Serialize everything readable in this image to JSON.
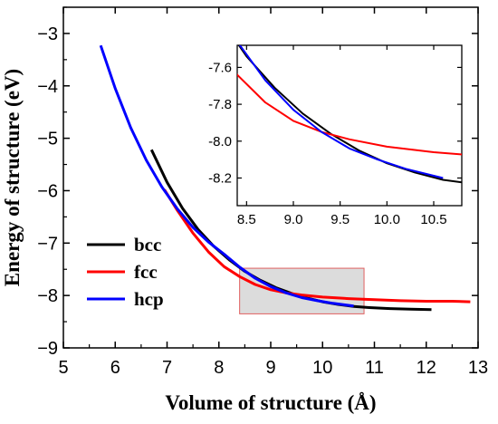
{
  "chart_data": {
    "type": "line",
    "xlabel": "Volume of structure (Å)",
    "ylabel": "Energy of structure (eV)",
    "xlim": [
      5,
      13
    ],
    "ylim": [
      -9,
      -2.5
    ],
    "x_ticks": [
      "5",
      "6",
      "7",
      "8",
      "9",
      "10",
      "11",
      "12",
      "13"
    ],
    "y_ticks": [
      "−9",
      "−8",
      "−7",
      "−6",
      "−5",
      "−4",
      "−3"
    ],
    "legend_position": "left",
    "series": [
      {
        "name": "bcc",
        "color": "#000000",
        "points": [
          [
            6.7,
            -5.22
          ],
          [
            7.0,
            -5.84
          ],
          [
            7.3,
            -6.34
          ],
          [
            7.6,
            -6.74
          ],
          [
            7.9,
            -7.06
          ],
          [
            8.2,
            -7.32
          ],
          [
            8.5,
            -7.54
          ],
          [
            8.8,
            -7.71
          ],
          [
            9.1,
            -7.85
          ],
          [
            9.4,
            -7.96
          ],
          [
            9.7,
            -8.05
          ],
          [
            10.0,
            -8.12
          ],
          [
            10.3,
            -8.17
          ],
          [
            10.6,
            -8.21
          ],
          [
            10.9,
            -8.23
          ],
          [
            11.3,
            -8.25
          ],
          [
            11.7,
            -8.26
          ],
          [
            12.1,
            -8.27
          ]
        ]
      },
      {
        "name": "fcc",
        "color": "#ff0000",
        "points": [
          [
            6.95,
            -5.98
          ],
          [
            7.2,
            -6.38
          ],
          [
            7.5,
            -6.81
          ],
          [
            7.8,
            -7.17
          ],
          [
            8.1,
            -7.45
          ],
          [
            8.4,
            -7.64
          ],
          [
            8.7,
            -7.79
          ],
          [
            9.0,
            -7.89
          ],
          [
            9.3,
            -7.95
          ],
          [
            9.6,
            -7.99
          ],
          [
            10.0,
            -8.03
          ],
          [
            10.5,
            -8.06
          ],
          [
            11.0,
            -8.08
          ],
          [
            11.5,
            -8.1
          ],
          [
            12.0,
            -8.11
          ],
          [
            12.5,
            -8.11
          ],
          [
            12.85,
            -8.12
          ]
        ]
      },
      {
        "name": "hcp",
        "color": "#0000ff",
        "points": [
          [
            5.72,
            -3.23
          ],
          [
            6.0,
            -4.05
          ],
          [
            6.3,
            -4.8
          ],
          [
            6.6,
            -5.42
          ],
          [
            6.9,
            -5.93
          ],
          [
            7.2,
            -6.35
          ],
          [
            7.5,
            -6.7
          ],
          [
            7.8,
            -6.98
          ],
          [
            8.1,
            -7.21
          ],
          [
            8.4,
            -7.46
          ],
          [
            8.7,
            -7.67
          ],
          [
            9.0,
            -7.83
          ],
          [
            9.3,
            -7.95
          ],
          [
            9.6,
            -8.04
          ],
          [
            9.9,
            -8.1
          ],
          [
            10.2,
            -8.15
          ],
          [
            10.6,
            -8.2
          ]
        ]
      }
    ],
    "highlight_region": {
      "x": [
        8.4,
        10.8
      ],
      "y": [
        -8.35,
        -7.48
      ],
      "color": "#e06060"
    },
    "inset": {
      "xlim": [
        8.4,
        10.8
      ],
      "ylim": [
        -8.35,
        -7.48
      ],
      "x_ticks": [
        "8.5",
        "9.0",
        "9.5",
        "10.0",
        "10.5"
      ],
      "y_ticks": [
        "-7.6",
        "-7.8",
        "-8.0",
        "-8.2"
      ]
    }
  }
}
